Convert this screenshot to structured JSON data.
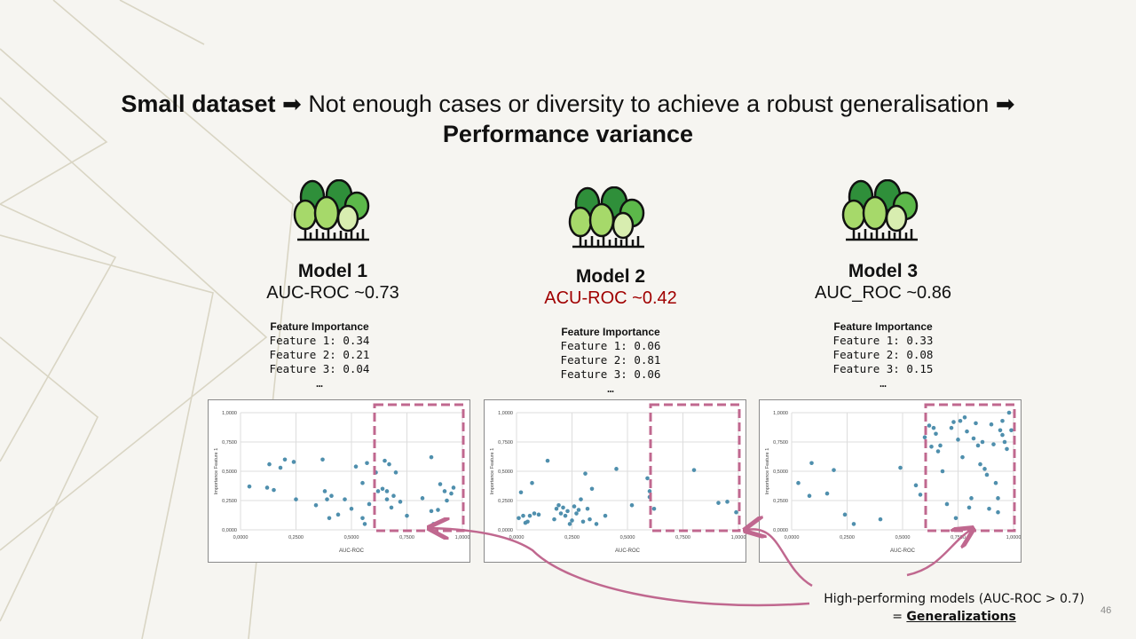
{
  "headline": {
    "part1_bold": "Small dataset",
    "arrow1": "➡",
    "part2": "Not enough cases or diversity to achieve a robust generalisation",
    "arrow2": "➡",
    "part3_bold": "Performance variance"
  },
  "models": [
    {
      "title": "Model 1",
      "auc": "AUC-ROC ~0.73",
      "auc_color": "#111111",
      "fi_title": "Feature Importance",
      "fi_lines": [
        "Feature 1: 0.34",
        "Feature 2: 0.21",
        "Feature 3: 0.04",
        "…"
      ],
      "points": [
        [
          0.04,
          0.37
        ],
        [
          0.12,
          0.36
        ],
        [
          0.15,
          0.34
        ],
        [
          0.13,
          0.56
        ],
        [
          0.18,
          0.53
        ],
        [
          0.2,
          0.6
        ],
        [
          0.24,
          0.58
        ],
        [
          0.25,
          0.26
        ],
        [
          0.34,
          0.21
        ],
        [
          0.37,
          0.6
        ],
        [
          0.38,
          0.33
        ],
        [
          0.39,
          0.26
        ],
        [
          0.4,
          0.1
        ],
        [
          0.41,
          0.29
        ],
        [
          0.44,
          0.13
        ],
        [
          0.47,
          0.26
        ],
        [
          0.5,
          0.18
        ],
        [
          0.52,
          0.54
        ],
        [
          0.55,
          0.1
        ],
        [
          0.56,
          0.05
        ],
        [
          0.57,
          0.57
        ],
        [
          0.58,
          0.22
        ],
        [
          0.61,
          0.49
        ],
        [
          0.62,
          0.33
        ],
        [
          0.64,
          0.35
        ],
        [
          0.65,
          0.59
        ],
        [
          0.66,
          0.33
        ],
        [
          0.67,
          0.56
        ],
        [
          0.68,
          0.19
        ],
        [
          0.69,
          0.29
        ],
        [
          0.7,
          0.49
        ],
        [
          0.72,
          0.24
        ],
        [
          0.75,
          0.12
        ],
        [
          0.82,
          0.27
        ],
        [
          0.86,
          0.62
        ],
        [
          0.87,
          0.05
        ],
        [
          0.89,
          0.06
        ],
        [
          0.89,
          0.17
        ],
        [
          0.9,
          0.39
        ],
        [
          0.92,
          0.33
        ],
        [
          0.93,
          0.25
        ],
        [
          0.95,
          0.31
        ],
        [
          0.96,
          0.36
        ],
        [
          0.86,
          0.16
        ],
        [
          0.66,
          0.26
        ],
        [
          0.55,
          0.4
        ]
      ]
    },
    {
      "title": "Model 2",
      "auc": "ACU-ROC ~0.42",
      "auc_color": "#a00000",
      "fi_title": "Feature Importance",
      "fi_lines": [
        "Feature 1: 0.06",
        "Feature 2: 0.81",
        "Feature 3: 0.06",
        "…"
      ],
      "points": [
        [
          0.01,
          0.1
        ],
        [
          0.02,
          0.32
        ],
        [
          0.03,
          0.12
        ],
        [
          0.04,
          0.06
        ],
        [
          0.05,
          0.07
        ],
        [
          0.06,
          0.12
        ],
        [
          0.07,
          0.4
        ],
        [
          0.08,
          0.14
        ],
        [
          0.1,
          0.13
        ],
        [
          0.14,
          0.59
        ],
        [
          0.17,
          0.09
        ],
        [
          0.18,
          0.18
        ],
        [
          0.19,
          0.21
        ],
        [
          0.2,
          0.14
        ],
        [
          0.21,
          0.19
        ],
        [
          0.22,
          0.12
        ],
        [
          0.23,
          0.16
        ],
        [
          0.24,
          0.05
        ],
        [
          0.25,
          0.08
        ],
        [
          0.26,
          0.2
        ],
        [
          0.27,
          0.14
        ],
        [
          0.28,
          0.17
        ],
        [
          0.29,
          0.26
        ],
        [
          0.3,
          0.07
        ],
        [
          0.31,
          0.48
        ],
        [
          0.32,
          0.18
        ],
        [
          0.33,
          0.09
        ],
        [
          0.34,
          0.35
        ],
        [
          0.36,
          0.05
        ],
        [
          0.4,
          0.12
        ],
        [
          0.45,
          0.52
        ],
        [
          0.52,
          0.21
        ],
        [
          0.59,
          0.44
        ],
        [
          0.6,
          0.33
        ],
        [
          0.62,
          0.18
        ],
        [
          0.6,
          0.28
        ],
        [
          0.8,
          0.51
        ],
        [
          0.91,
          0.23
        ],
        [
          0.95,
          0.24
        ],
        [
          0.99,
          0.15
        ]
      ]
    },
    {
      "title": "Model 3",
      "auc": "AUC_ROC ~0.86",
      "auc_color": "#111111",
      "fi_title": "Feature Importance",
      "fi_lines": [
        "Feature 1: 0.33",
        "Feature 2: 0.08",
        "Feature 3: 0.15",
        "…"
      ],
      "points": [
        [
          0.03,
          0.4
        ],
        [
          0.08,
          0.29
        ],
        [
          0.09,
          0.57
        ],
        [
          0.16,
          0.31
        ],
        [
          0.19,
          0.51
        ],
        [
          0.24,
          0.13
        ],
        [
          0.28,
          0.05
        ],
        [
          0.4,
          0.09
        ],
        [
          0.49,
          0.53
        ],
        [
          0.56,
          0.38
        ],
        [
          0.58,
          0.3
        ],
        [
          0.6,
          0.79
        ],
        [
          0.62,
          0.89
        ],
        [
          0.63,
          0.71
        ],
        [
          0.64,
          0.87
        ],
        [
          0.65,
          0.82
        ],
        [
          0.67,
          0.72
        ],
        [
          0.68,
          0.5
        ],
        [
          0.7,
          0.22
        ],
        [
          0.72,
          0.87
        ],
        [
          0.73,
          0.92
        ],
        [
          0.74,
          0.1
        ],
        [
          0.75,
          0.77
        ],
        [
          0.76,
          0.93
        ],
        [
          0.77,
          0.62
        ],
        [
          0.78,
          0.96
        ],
        [
          0.79,
          0.84
        ],
        [
          0.8,
          0.19
        ],
        [
          0.81,
          0.27
        ],
        [
          0.82,
          0.78
        ],
        [
          0.83,
          0.91
        ],
        [
          0.84,
          0.72
        ],
        [
          0.85,
          0.56
        ],
        [
          0.86,
          0.75
        ],
        [
          0.87,
          0.52
        ],
        [
          0.88,
          0.47
        ],
        [
          0.89,
          0.18
        ],
        [
          0.9,
          0.9
        ],
        [
          0.91,
          0.73
        ],
        [
          0.92,
          0.4
        ],
        [
          0.93,
          0.15
        ],
        [
          0.94,
          0.85
        ],
        [
          0.95,
          0.93
        ],
        [
          0.96,
          0.75
        ],
        [
          0.97,
          0.69
        ],
        [
          0.98,
          1.0
        ],
        [
          0.99,
          0.85
        ],
        [
          0.93,
          0.27
        ],
        [
          0.95,
          0.81
        ],
        [
          0.66,
          0.67
        ]
      ]
    }
  ],
  "plot": {
    "x_label": "AUC-ROC",
    "y_label": "Importance Feature 1",
    "x_ticks": [
      "0,0000",
      "0,2500",
      "0,5000",
      "0,7500",
      "1,0000"
    ],
    "y_ticks": [
      "0,0000",
      "0,2500",
      "0,5000",
      "0,7500",
      "1,0000"
    ],
    "dot_color": "#4f8fad",
    "highlight_color": "#c0688f"
  },
  "caption": {
    "line1": "High-performing models (AUC-ROC > 0.7)",
    "line2_prefix": "= ",
    "line2_bold": "Generalizations"
  },
  "page_number": "46"
}
